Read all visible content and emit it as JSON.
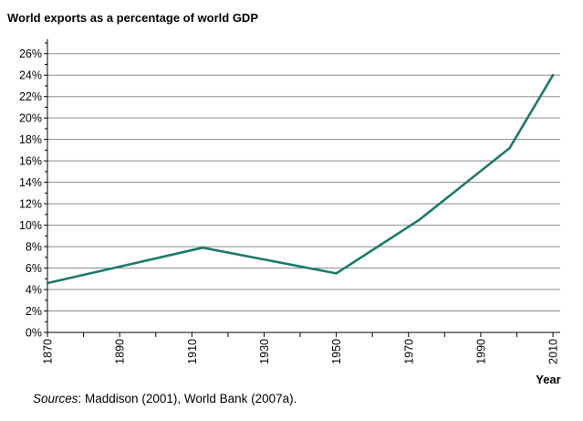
{
  "chart_data": {
    "type": "line",
    "title": "World exports as a percentage of world GDP",
    "xlabel": "Year",
    "ylabel": "",
    "xlim": [
      1870,
      2012
    ],
    "ylim": [
      0,
      27
    ],
    "x_ticks": [
      "1870",
      "1890",
      "1910",
      "1930",
      "1950",
      "1970",
      "1990",
      "2010"
    ],
    "y_ticks": [
      "0%",
      "2%",
      "4%",
      "6%",
      "8%",
      "10%",
      "12%",
      "14%",
      "16%",
      "18%",
      "20%",
      "22%",
      "24%",
      "26%"
    ],
    "grid": true,
    "line_color": "#1a7a6a",
    "series": [
      {
        "x": [
          1870,
          1913,
          1950,
          1973,
          1998,
          2010
        ],
        "values": [
          4.6,
          7.9,
          5.5,
          10.5,
          17.2,
          24.0
        ]
      }
    ]
  },
  "source": {
    "label": "Sources",
    "text": ": Maddison (2001), World Bank (2007a)."
  }
}
